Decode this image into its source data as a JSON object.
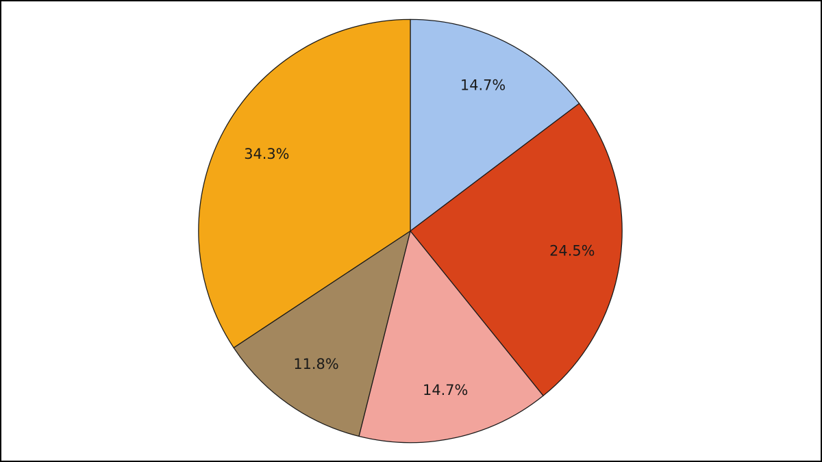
{
  "chart_data": {
    "type": "pie",
    "title": "",
    "legend": "none",
    "label_position": "inside",
    "label_radius_fraction": 0.77,
    "start_angle_deg": 0,
    "direction": "clockwise",
    "slices": [
      {
        "label": "14.7%",
        "value": 14.7,
        "color": "#a3c3ee"
      },
      {
        "label": "24.5%",
        "value": 24.5,
        "color": "#d8431a"
      },
      {
        "label": "14.7%",
        "value": 14.7,
        "color": "#f2a49c"
      },
      {
        "label": "11.8%",
        "value": 11.8,
        "color": "#a3875e"
      },
      {
        "label": "34.3%",
        "value": 34.3,
        "color": "#f4a717"
      }
    ],
    "stroke_color": "#1a1a1a",
    "label_color": "#1a1a1a",
    "background_color": "#ffffff",
    "frame_border_color": "#000000"
  }
}
